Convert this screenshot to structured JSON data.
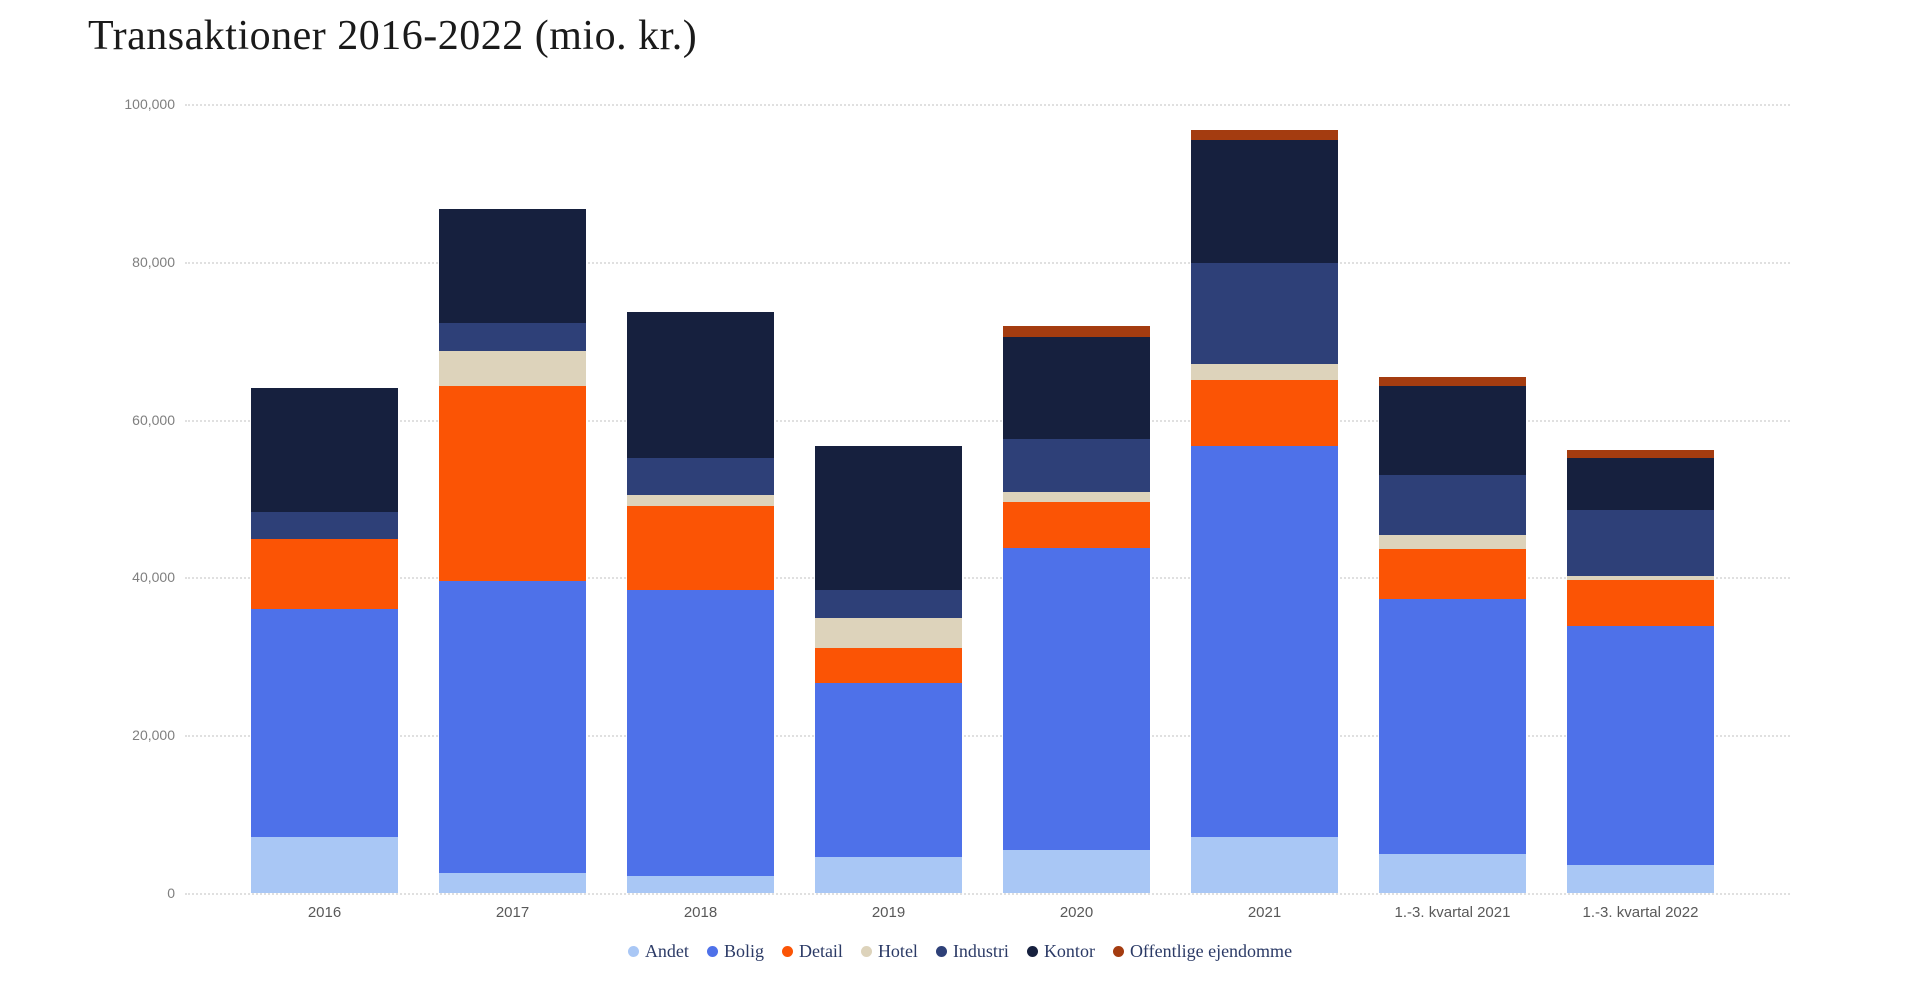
{
  "title": "Transaktioner 2016-2022 (mio. kr.)",
  "chart_data": {
    "type": "bar",
    "stacked": true,
    "title": "Transaktioner 2016-2022 (mio. kr.)",
    "xlabel": "",
    "ylabel": "",
    "ylim": [
      0,
      100000
    ],
    "ytick_values": [
      0,
      20000,
      40000,
      60000,
      80000,
      100000
    ],
    "ytick_labels": [
      "0",
      "20,000",
      "40,000",
      "60,000",
      "80,000",
      "100,000"
    ],
    "grid": "horizontal-dotted",
    "legend_position": "bottom-center",
    "categories": [
      "2016",
      "2017",
      "2018",
      "2019",
      "2020",
      "2021",
      "1.-3. kvartal 2021",
      "1.-3. kvartal 2022"
    ],
    "series": [
      {
        "name": "Andet",
        "color": "#a9c7f5",
        "values": [
          7100,
          2500,
          2200,
          4600,
          5400,
          7100,
          5000,
          3600
        ]
      },
      {
        "name": "Bolig",
        "color": "#4e71e9",
        "values": [
          28900,
          37100,
          36200,
          22000,
          38300,
          49600,
          32300,
          30200
        ]
      },
      {
        "name": "Detail",
        "color": "#fb5405",
        "values": [
          8900,
          24700,
          10700,
          4400,
          5900,
          8300,
          6300,
          5900
        ]
      },
      {
        "name": "Hotel",
        "color": "#ddd3bb",
        "values": [
          0,
          4400,
          1400,
          3800,
          1200,
          2000,
          1800,
          500
        ]
      },
      {
        "name": "Industri",
        "color": "#2e4078",
        "values": [
          3400,
          3600,
          4600,
          3600,
          6800,
          12800,
          7600,
          8400
        ]
      },
      {
        "name": "Kontor",
        "color": "#16203e",
        "values": [
          15700,
          14400,
          18600,
          18200,
          12900,
          15700,
          11200,
          6500
        ]
      },
      {
        "name": "Offentlige ejendomme",
        "color": "#a43c10",
        "values": [
          0,
          0,
          0,
          0,
          1400,
          1200,
          1200,
          1000
        ]
      }
    ],
    "totals": [
      64000,
      86700,
      73700,
      56600,
      71900,
      96700,
      65400,
      56100
    ]
  },
  "colors": {
    "background": "#ffffff",
    "gridline": "#e0e0e0",
    "title_text": "#1a1a1a",
    "ytick_text": "#7f7f7f",
    "xtick_text": "#595959",
    "legend_text": "#2b3a66"
  }
}
